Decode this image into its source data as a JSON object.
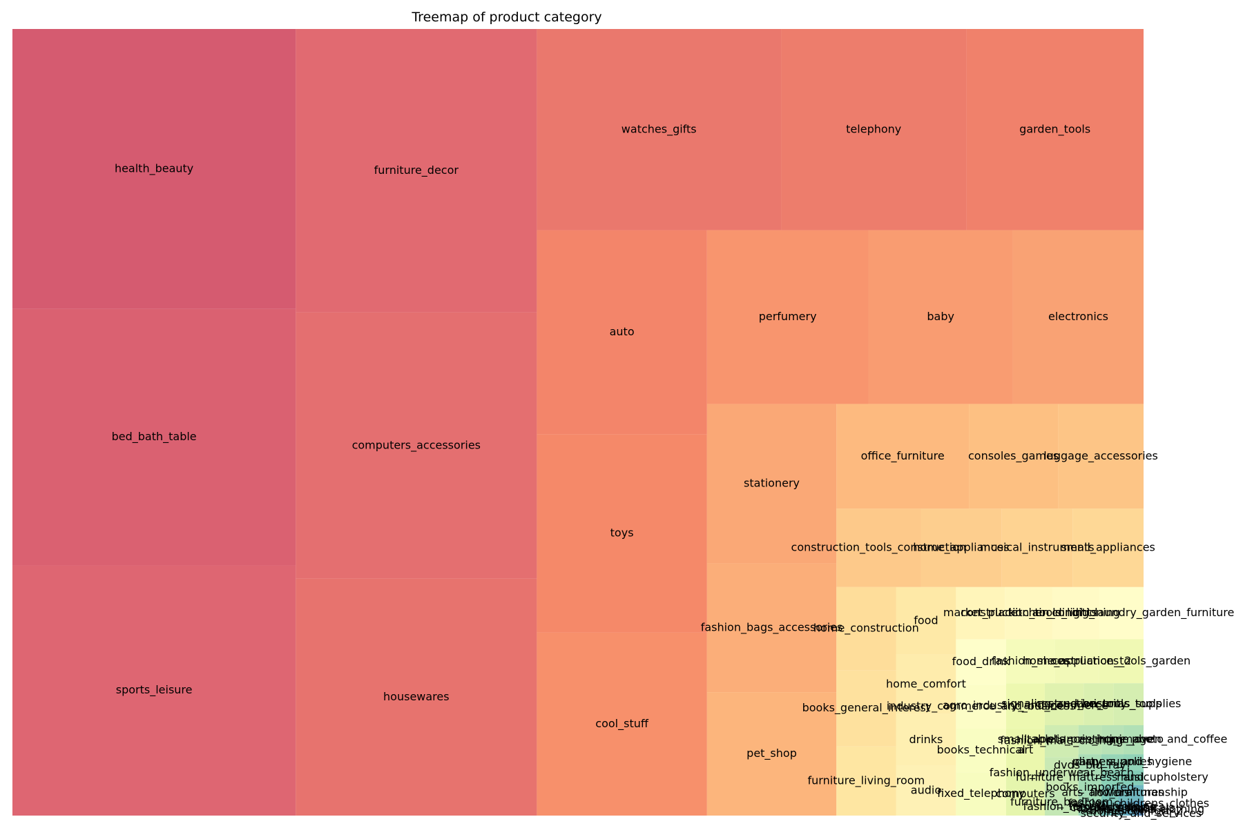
{
  "chart_data": {
    "type": "treemap",
    "title": "Treemap of product category",
    "colormap": "Spectral",
    "grid": false,
    "legend": "none",
    "categories": [
      "sports_leisure",
      "bed_bath_table",
      "health_beauty",
      "perfumery",
      "cool_stuff",
      "auto",
      "furniture_decor",
      "telephony",
      "toys",
      "computers_accessories",
      "watches_gifts",
      "housewares",
      "pet_shop",
      "fashion_bags_accessories",
      "stationery",
      "garden_tools",
      "baby",
      "electronics",
      "office_furniture",
      "consoles_games",
      "luggage_accessories",
      "musical_instruments",
      "construction_tools_construction",
      "home_appliances",
      "home_construction",
      "books_general_interest",
      "small_appliances",
      "industry_commerce_and_business",
      "food",
      "air_conditioning",
      "fashion_shoes",
      "drinks",
      "furniture_living_room",
      "fixed_telephony",
      "fashion_male_clothing",
      "costruction_tools_tools",
      "food_drink",
      "small_appliances_home_oven_and_coffee",
      "construction_tools_lights",
      "agro_industry_and_commerce",
      "market_place",
      "kitchen_dining_laundry_garden_furniture",
      "audio",
      "home_comfort",
      "books_technical",
      "home_appliances_2",
      "fashion_underwear_beach",
      "computers",
      "costruction_tools_garden",
      "signaling_and_security",
      "christmas_supplies",
      "tablets_printing_image",
      "furniture_mattress_and_upholstery",
      "books_imported",
      "diapers_and_hygiene",
      "fashion_female_clothing",
      "music",
      "arts_and_craftmanship",
      "fashion_sport",
      "furniture_bedroom",
      "dvds_blu_ray",
      "cds_dvds_musicals",
      "fashio_female_clothing",
      "home_comfort_2",
      "flowers",
      "fashion_childrens_clothes",
      "la_cuisine",
      "security_and_services",
      "party_supplies",
      "cine_photo",
      "art",
      "furnitures"
    ],
    "values": [
      8641,
      8860,
      9670,
      3419,
      3796,
      4235,
      8334,
      4545,
      4117,
      7827,
      5991,
      6964,
      1947,
      2031,
      2517,
      4347,
      3065,
      2767,
      1691,
      1137,
      1092,
      680,
      808,
      771,
      604,
      553,
      679,
      268,
      495,
      297,
      262,
      379,
      503,
      264,
      131,
      153,
      278,
      76,
      304,
      212,
      311,
      281,
      364,
      434,
      267,
      238,
      131,
      203,
      238,
      199,
      153,
      83,
      38,
      60,
      39,
      48,
      38,
      24,
      30,
      109,
      64,
      14,
      3,
      5,
      33,
      8,
      14,
      2,
      43,
      72,
      209,
      24
    ]
  }
}
